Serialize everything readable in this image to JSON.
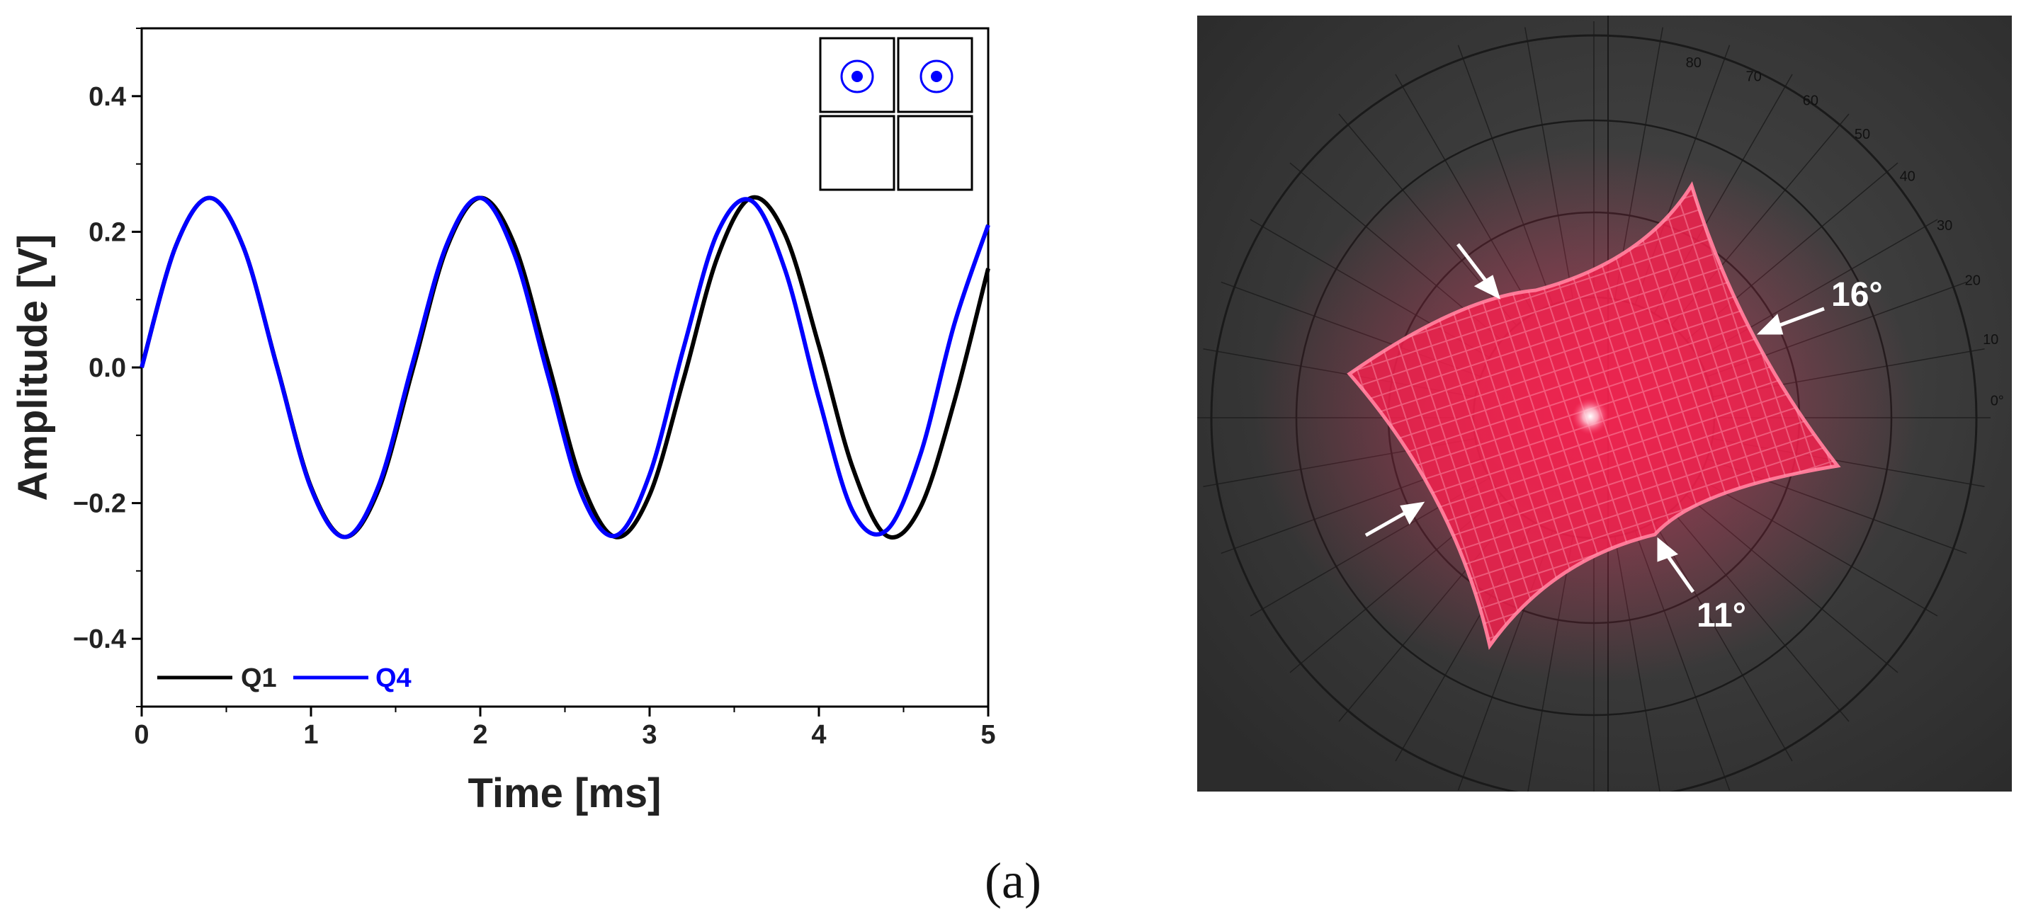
{
  "chart_data": {
    "type": "line",
    "xlabel": "Time [ms]",
    "ylabel": "Amplitude [V]",
    "xlim": [
      0,
      5
    ],
    "ylim": [
      -0.5,
      0.5
    ],
    "x_ticks": [
      "0",
      "1",
      "2",
      "3",
      "4",
      "5"
    ],
    "y_ticks": [
      "−0.4",
      "−0.2",
      "0.0",
      "0.2",
      "0.4"
    ],
    "y_tick_values": [
      -0.4,
      -0.2,
      0.0,
      0.2,
      0.4
    ],
    "grid": false,
    "legend_position": "bottom-left",
    "series": [
      {
        "name": "Q1",
        "color": "#000000",
        "x": [
          0.0,
          0.2,
          0.4,
          0.6,
          0.8,
          1.0,
          1.2,
          1.4,
          1.6,
          1.8,
          2.0,
          2.2,
          2.4,
          2.6,
          2.8,
          3.0,
          3.2,
          3.4,
          3.6,
          3.8,
          4.0,
          4.2,
          4.4,
          4.6,
          4.8,
          5.0
        ],
        "values": [
          0.0,
          0.178,
          0.25,
          0.178,
          0.001,
          -0.176,
          -0.25,
          -0.18,
          -0.004,
          0.175,
          0.25,
          0.182,
          0.008,
          -0.17,
          -0.25,
          -0.188,
          -0.018,
          0.162,
          0.25,
          0.196,
          0.032,
          -0.148,
          -0.248,
          -0.206,
          -0.05,
          0.146
        ]
      },
      {
        "name": "Q4",
        "color": "#0000ff",
        "x": [
          0.0,
          0.2,
          0.4,
          0.6,
          0.8,
          1.0,
          1.2,
          1.4,
          1.6,
          1.8,
          2.0,
          2.2,
          2.4,
          2.6,
          2.8,
          3.0,
          3.2,
          3.4,
          3.6,
          3.8,
          4.0,
          4.2,
          4.4,
          4.6,
          4.8,
          5.0
        ],
        "values": [
          0.0,
          0.178,
          0.25,
          0.178,
          0.0,
          -0.178,
          -0.25,
          -0.174,
          0.006,
          0.18,
          0.25,
          0.168,
          -0.012,
          -0.188,
          -0.248,
          -0.158,
          0.028,
          0.198,
          0.246,
          0.144,
          -0.046,
          -0.212,
          -0.24,
          -0.128,
          0.064,
          0.21
        ]
      }
    ]
  },
  "inset": {
    "cells": [
      {
        "marker": "target"
      },
      {
        "marker": "target"
      },
      {
        "marker": "none"
      },
      {
        "marker": "none"
      }
    ],
    "marker_color": "#0000ff"
  },
  "photo": {
    "labels": {
      "top_right": "16°",
      "bottom_right": "11°"
    },
    "scale_numbers": [
      "80",
      "70",
      "60",
      "50",
      "40",
      "30",
      "20",
      "10",
      "0°"
    ],
    "laser_color": "#ff2a55",
    "background_color": "#3a3a3a"
  },
  "panel_label": "(a)"
}
